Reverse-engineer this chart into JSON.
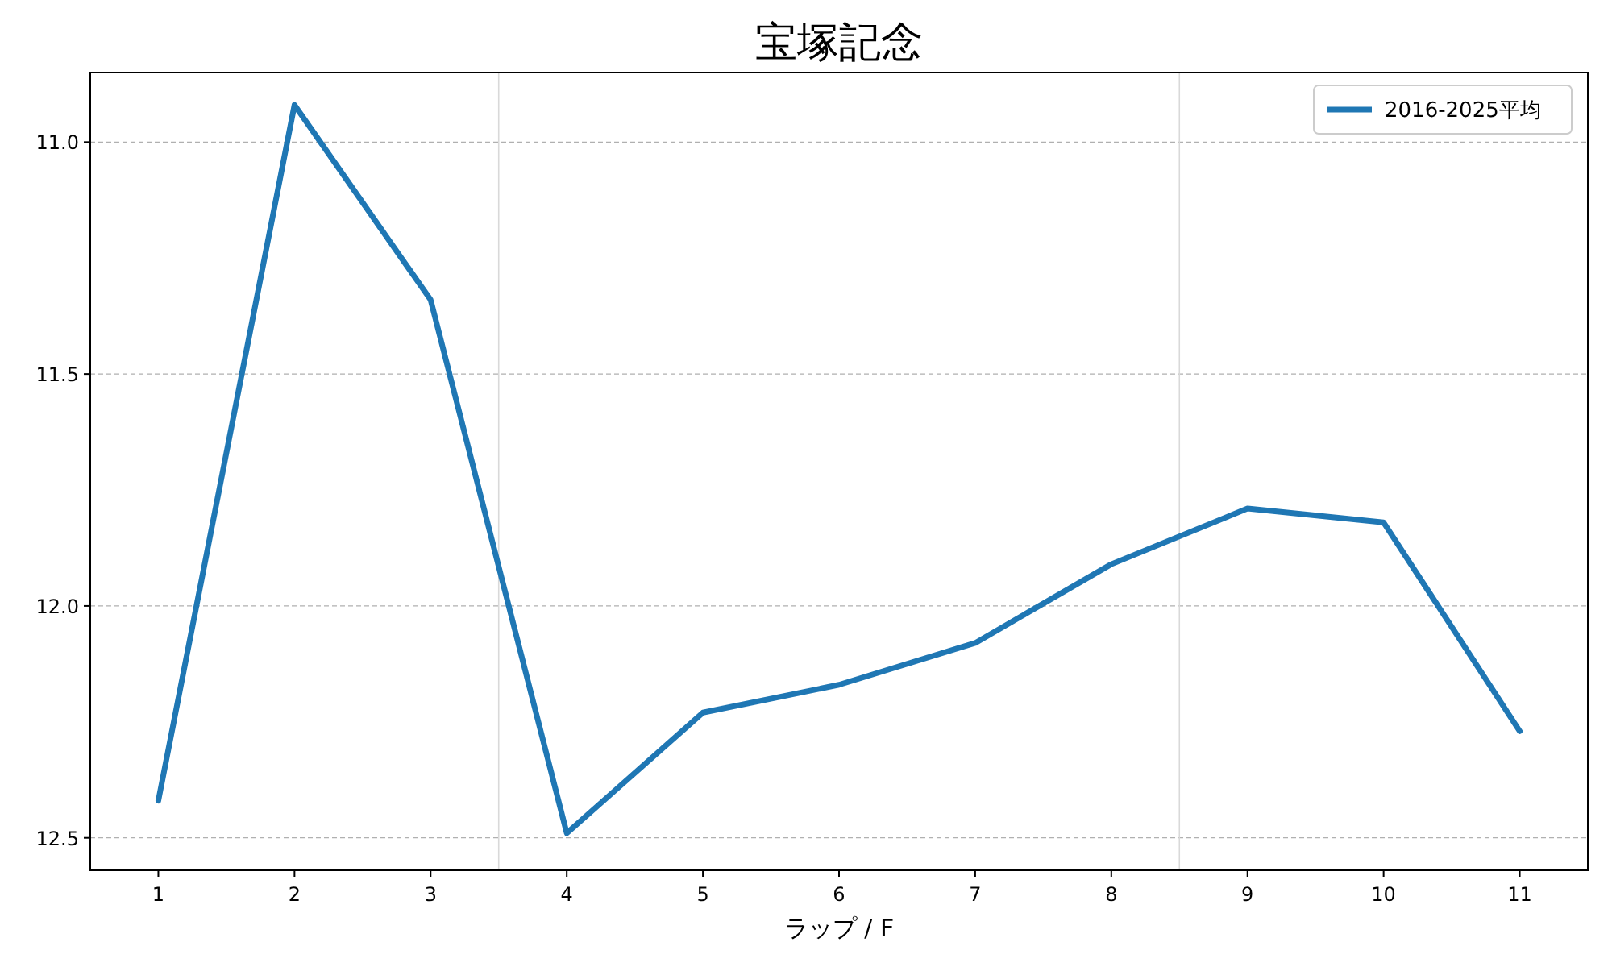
{
  "chart_data": {
    "type": "line",
    "title": "宝塚記念",
    "xlabel": "ラップ / F",
    "x": [
      1,
      2,
      3,
      4,
      5,
      6,
      7,
      8,
      9,
      10,
      11
    ],
    "series": [
      {
        "name": "2016-2025平均",
        "color": "#1f77b4",
        "values": [
          12.42,
          10.92,
          11.34,
          12.49,
          12.23,
          12.17,
          12.08,
          11.91,
          11.79,
          11.82,
          12.27
        ]
      }
    ],
    "xlim": [
      0.5,
      11.5
    ],
    "xticks": [
      1,
      2,
      3,
      4,
      5,
      6,
      7,
      8,
      9,
      10,
      11
    ],
    "ylim": [
      12.57,
      10.85
    ],
    "yticks": [
      {
        "value": 11,
        "label": "11.0"
      },
      11.5,
      {
        "value": 12,
        "label": "12.0"
      },
      12.5
    ],
    "ref_lines": [
      {
        "axis": "x",
        "value": 3.5,
        "color": "#d9d9d9"
      },
      {
        "axis": "x",
        "value": 8.5,
        "color": "#d9d9d9"
      }
    ],
    "grid": "y",
    "legend": "top right",
    "marker": "none",
    "line_style": "solid"
  }
}
